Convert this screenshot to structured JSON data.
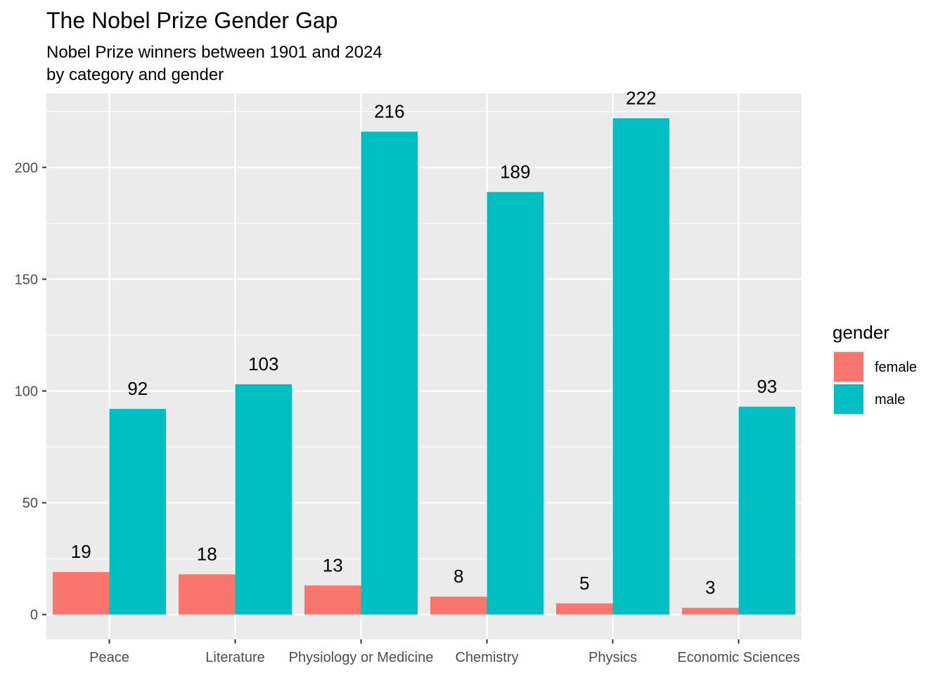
{
  "chart_data": {
    "type": "bar",
    "title": "The Nobel Prize Gender Gap",
    "subtitle_lines": [
      "Nobel Prize winners between 1901 and 2024",
      "by category and gender"
    ],
    "xlabel": "",
    "ylabel": "",
    "categories": [
      "Peace",
      "Literature",
      "Physiology or Medicine",
      "Chemistry",
      "Physics",
      "Economic Sciences"
    ],
    "series": [
      {
        "name": "female",
        "color": "#F8766D",
        "values": [
          19,
          18,
          13,
          8,
          5,
          3
        ]
      },
      {
        "name": "male",
        "color": "#00BFC4",
        "values": [
          92,
          103,
          216,
          189,
          222,
          93
        ]
      }
    ],
    "ylim": [
      -11.1,
      233.1
    ],
    "yticks": [
      0,
      50,
      100,
      150,
      200
    ],
    "grid": true,
    "legend": {
      "title": "gender",
      "position": "right"
    },
    "colors": {
      "panel_background": "#EBEBEB",
      "grid": "#FFFFFF",
      "female": "#F8766D",
      "male": "#00BFC4"
    }
  }
}
